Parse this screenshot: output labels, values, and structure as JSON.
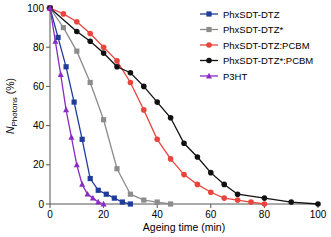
{
  "chart_data": {
    "type": "line",
    "x_label": "Ageing time (min)",
    "y_label": "NPhotons (%)",
    "xlim": [
      0,
      100
    ],
    "xticks": [
      0,
      20,
      40,
      60,
      80,
      100
    ],
    "ylim": [
      0,
      100
    ],
    "yticks": [
      0,
      20,
      40,
      60,
      80,
      100
    ],
    "legend": "top-right",
    "series": [
      {
        "name": "PhxSDT-DTZ",
        "color": "#1f3c9a",
        "marker": "square",
        "x": [
          0,
          3,
          6,
          9,
          12,
          15,
          18,
          21,
          24,
          27,
          30
        ],
        "values": [
          100,
          85,
          70,
          52,
          33,
          13,
          7,
          5,
          3,
          1,
          0
        ]
      },
      {
        "name": "PhxSDT-DTZ*",
        "color": "#8c8c8c",
        "marker": "square",
        "x": [
          0,
          5,
          10,
          15,
          20,
          25,
          30,
          35,
          40,
          45
        ],
        "values": [
          100,
          90,
          78,
          62,
          43,
          18,
          5,
          2,
          1,
          0
        ]
      },
      {
        "name": "PhxSDT-DTZ:PCBM",
        "color": "#e8453c",
        "marker": "circle",
        "x": [
          0,
          5,
          10,
          15,
          20,
          25,
          30,
          35,
          40,
          45,
          50,
          55,
          60,
          65,
          70,
          75,
          80
        ],
        "values": [
          100,
          97,
          93,
          87,
          80,
          73,
          62,
          48,
          33,
          23,
          15,
          10,
          6,
          3,
          2,
          1,
          0
        ]
      },
      {
        "name": "PhxSDT-DTZ*:PCBM",
        "color": "#111111",
        "marker": "circle",
        "x": [
          0,
          10,
          15,
          20,
          25,
          30,
          35,
          40,
          45,
          50,
          55,
          60,
          65,
          70,
          80,
          90,
          100
        ],
        "values": [
          100,
          88,
          83,
          77,
          70,
          67,
          60,
          52,
          44,
          31,
          24,
          16,
          10,
          5,
          3,
          1,
          0
        ]
      },
      {
        "name": "P3HT",
        "color": "#8a2bc4",
        "marker": "triangle",
        "x": [
          0,
          2,
          4,
          6,
          8,
          10,
          12,
          14,
          16,
          18,
          20
        ],
        "values": [
          100,
          83,
          66,
          48,
          34,
          20,
          10,
          5,
          3,
          1,
          0
        ]
      }
    ]
  }
}
